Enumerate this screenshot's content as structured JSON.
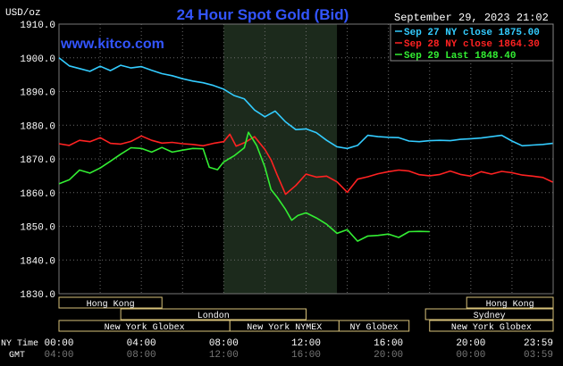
{
  "chart_data": {
    "type": "line",
    "title": "24 Hour Spot Gold (Bid)",
    "watermark": "www.kitco.com",
    "timestamp": "September 29, 2023 21:02",
    "y_unit": "USD/oz",
    "ylim": [
      1830,
      1910
    ],
    "y_ticks": [
      "1910.0",
      "1900.0",
      "1890.0",
      "1880.0",
      "1870.0",
      "1860.0",
      "1850.0",
      "1840.0",
      "1830.0"
    ],
    "x_tick_labels": [
      "00:00",
      "04:00",
      "08:00",
      "12:00",
      "16:00",
      "20:00",
      "23:59"
    ],
    "gmt_tick_labels": [
      "04:00",
      "08:00",
      "12:00",
      "16:00",
      "20:00",
      "00:00",
      "03:59"
    ],
    "x_row_label": "NY Time",
    "gmt_row_label": "GMT",
    "grid": true,
    "legend_position": "top-right",
    "shaded_session": {
      "start_hour": 8.0,
      "end_hour": 13.5,
      "color": "#1c2a1c"
    },
    "series": [
      {
        "name": "Sep 27 NY close 1875.00",
        "color": "#33ccff",
        "x": [
          0,
          0.5,
          1,
          1.5,
          2,
          2.5,
          3,
          3.5,
          4,
          4.5,
          5,
          5.5,
          6,
          6.5,
          7,
          7.5,
          8,
          8.5,
          9,
          9.5,
          10,
          10.5,
          11,
          11.5,
          12,
          12.5,
          13,
          13.5,
          14,
          14.5,
          15,
          15.5,
          16,
          16.5,
          17,
          17.5,
          18,
          18.5,
          19,
          19.5,
          20,
          20.5,
          21,
          21.5,
          22,
          22.5,
          23,
          23.5,
          23.98
        ],
        "y": [
          1900.0,
          1897.6,
          1896.8,
          1896.0,
          1897.5,
          1896.2,
          1897.8,
          1897.0,
          1897.4,
          1896.3,
          1895.3,
          1894.7,
          1893.8,
          1893.1,
          1892.6,
          1891.8,
          1890.7,
          1888.8,
          1887.8,
          1884.5,
          1882.5,
          1884.2,
          1881.0,
          1878.7,
          1878.9,
          1877.8,
          1875.5,
          1873.6,
          1873.1,
          1874.0,
          1877.0,
          1876.6,
          1876.4,
          1876.3,
          1875.3,
          1875.1,
          1875.4,
          1875.5,
          1875.4,
          1875.8,
          1876.0,
          1876.2,
          1876.6,
          1877.0,
          1875.3,
          1873.9,
          1874.1,
          1874.3,
          1874.6
        ]
      },
      {
        "name": "Sep 28 NY close 1864.30",
        "color": "#ff2222",
        "x": [
          0,
          0.5,
          1,
          1.5,
          2,
          2.5,
          3,
          3.5,
          4,
          4.5,
          5,
          5.5,
          6,
          6.5,
          7,
          7.5,
          8,
          8.3,
          8.6,
          9,
          9.5,
          10,
          10.3,
          10.6,
          11,
          11.5,
          12,
          12.5,
          13,
          13.5,
          14,
          14.5,
          15,
          15.5,
          16,
          16.5,
          17,
          17.5,
          18,
          18.5,
          19,
          19.5,
          20,
          20.5,
          21,
          21.5,
          22,
          22.5,
          23,
          23.5,
          23.98
        ],
        "y": [
          1874.5,
          1874.0,
          1875.5,
          1875.1,
          1876.3,
          1874.6,
          1874.4,
          1875.2,
          1876.8,
          1875.5,
          1874.7,
          1874.9,
          1874.5,
          1874.3,
          1873.9,
          1874.6,
          1875.1,
          1877.3,
          1873.8,
          1874.8,
          1876.6,
          1872.8,
          1869.7,
          1865.2,
          1859.5,
          1862.1,
          1865.5,
          1864.6,
          1864.9,
          1863.2,
          1860.1,
          1864.0,
          1864.7,
          1865.6,
          1866.2,
          1866.7,
          1866.4,
          1865.3,
          1865.0,
          1865.4,
          1866.4,
          1865.4,
          1864.9,
          1866.2,
          1865.5,
          1866.3,
          1865.9,
          1865.2,
          1864.9,
          1864.5,
          1863.1
        ]
      },
      {
        "name": "Sep 29 Last 1848.40",
        "color": "#33ee33",
        "x": [
          0,
          0.5,
          1,
          1.5,
          2,
          2.5,
          3,
          3.5,
          4,
          4.5,
          5,
          5.5,
          6,
          6.5,
          7,
          7.3,
          7.7,
          8,
          8.5,
          9,
          9.2,
          9.6,
          10,
          10.3,
          10.6,
          11,
          11.3,
          11.6,
          12,
          12.5,
          13,
          13.5,
          14,
          14.5,
          15,
          15.5,
          16,
          16.5,
          17,
          17.5,
          18
        ],
        "y": [
          1862.6,
          1863.8,
          1866.7,
          1865.8,
          1867.3,
          1869.3,
          1871.4,
          1873.3,
          1873.1,
          1872.0,
          1873.4,
          1872.0,
          1872.6,
          1873.1,
          1873.0,
          1867.5,
          1866.8,
          1869.1,
          1870.9,
          1873.3,
          1877.9,
          1874.0,
          1867.6,
          1860.9,
          1858.6,
          1855.0,
          1851.8,
          1853.2,
          1854.0,
          1852.5,
          1850.6,
          1847.9,
          1849.0,
          1845.6,
          1847.1,
          1847.3,
          1847.7,
          1846.7,
          1848.4,
          1848.5,
          1848.4
        ]
      }
    ],
    "session_rows": [
      [
        {
          "label": "Hong Kong",
          "start_hour": 0,
          "end_hour": 5.0
        },
        {
          "label": "Hong Kong",
          "start_hour": 19.8,
          "end_hour": 24
        }
      ],
      [
        {
          "label": "London",
          "start_hour": 3.0,
          "end_hour": 12.0
        },
        {
          "label": "Sydney",
          "start_hour": 17.8,
          "end_hour": 24
        }
      ],
      [
        {
          "label": "New York Globex",
          "start_hour": 0,
          "end_hour": 8.3
        },
        {
          "label": "New York NYMEX",
          "start_hour": 8.3,
          "end_hour": 13.6
        },
        {
          "label": "NY Globex",
          "start_hour": 13.6,
          "end_hour": 17.0
        },
        {
          "label": "New York Globex",
          "start_hour": 18.0,
          "end_hour": 24
        }
      ]
    ]
  }
}
